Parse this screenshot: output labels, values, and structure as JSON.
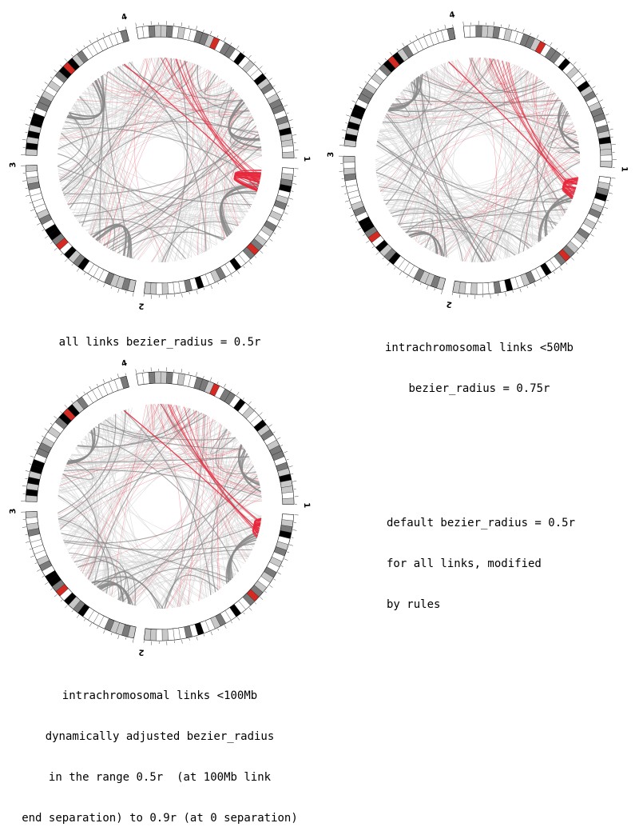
{
  "panels": [
    {
      "id": "p1",
      "cx": 200,
      "cy": 200,
      "r": 168,
      "rotation": -10,
      "caption_lines": [
        "all links bezier_radius = 0.5r"
      ],
      "link_mode": "all"
    },
    {
      "id": "p2",
      "cx": 598,
      "cy": 200,
      "r": 168,
      "rotation": -6,
      "caption_lines": [
        "intrachromosomal links <50Mb",
        "bezier_radius = 0.75r"
      ],
      "link_mode": "intra50"
    },
    {
      "id": "p3",
      "cx": 200,
      "cy": 633,
      "r": 168,
      "rotation": -10,
      "caption_lines": [
        "intrachromosomal links <100Mb",
        "dynamically adjusted bezier_radius",
        "in the range 0.5r  (at 100Mb link",
        "end separation) to 0.9r (at 0 separation)"
      ],
      "link_mode": "dynamic"
    }
  ],
  "side_note": {
    "lines": [
      "default bezier_radius = 0.5r",
      "for all links, modified",
      "by rules"
    ]
  },
  "chromosomes": [
    {
      "label": "1",
      "span": 131
    },
    {
      "label": "2",
      "span": 123
    },
    {
      "label": "3",
      "span": 101
    },
    {
      "label": "4",
      "span": 97
    }
  ],
  "colors": {
    "link_gray": "#8a8a8a",
    "link_light": "#d4d4d4",
    "link_red": "#e8283c",
    "band_dark": "#000000",
    "band_mid": "#7a7a7a",
    "band_light": "#c8c8c8",
    "centromere": "#d42a24"
  }
}
